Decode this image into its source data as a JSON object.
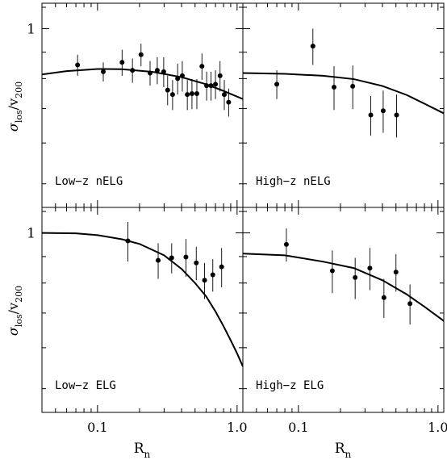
{
  "colors": {
    "ink": "#000000",
    "background": "#ffffff"
  },
  "xaxis": {
    "scale": "log",
    "range": [
      0.04,
      1.1
    ],
    "ticks": [
      {
        "value": 0.1,
        "label": "0.1"
      },
      {
        "value": 1.0,
        "label": "1.0"
      }
    ],
    "label": "R",
    "label_sub": "n"
  },
  "yaxis": {
    "scale": "log",
    "range": [
      0.45,
      1.12
    ],
    "ticks": [
      {
        "value": 1,
        "label": "1"
      }
    ],
    "label": "σ",
    "label_sub1": "los",
    "label_mid": "/v",
    "label_sub2": "200"
  },
  "chart_data": [
    {
      "type": "scatter",
      "panel": "top-left",
      "title": "Low−z nELG",
      "points": [
        {
          "x": 0.072,
          "y": 0.85,
          "err": 0.04
        },
        {
          "x": 0.11,
          "y": 0.825,
          "err": 0.035
        },
        {
          "x": 0.15,
          "y": 0.86,
          "err": 0.05
        },
        {
          "x": 0.178,
          "y": 0.83,
          "err": 0.045
        },
        {
          "x": 0.205,
          "y": 0.89,
          "err": 0.045
        },
        {
          "x": 0.238,
          "y": 0.82,
          "err": 0.045
        },
        {
          "x": 0.268,
          "y": 0.83,
          "err": 0.05
        },
        {
          "x": 0.298,
          "y": 0.825,
          "err": 0.055
        },
        {
          "x": 0.318,
          "y": 0.76,
          "err": 0.05
        },
        {
          "x": 0.345,
          "y": 0.745,
          "err": 0.05
        },
        {
          "x": 0.375,
          "y": 0.8,
          "err": 0.055
        },
        {
          "x": 0.405,
          "y": 0.81,
          "err": 0.055
        },
        {
          "x": 0.44,
          "y": 0.745,
          "err": 0.05
        },
        {
          "x": 0.475,
          "y": 0.748,
          "err": 0.05
        },
        {
          "x": 0.515,
          "y": 0.748,
          "err": 0.05
        },
        {
          "x": 0.56,
          "y": 0.845,
          "err": 0.05
        },
        {
          "x": 0.605,
          "y": 0.775,
          "err": 0.05
        },
        {
          "x": 0.65,
          "y": 0.775,
          "err": 0.05
        },
        {
          "x": 0.7,
          "y": 0.78,
          "err": 0.05
        },
        {
          "x": 0.755,
          "y": 0.81,
          "err": 0.055
        },
        {
          "x": 0.81,
          "y": 0.745,
          "err": 0.05
        },
        {
          "x": 0.87,
          "y": 0.72,
          "err": 0.045
        }
      ],
      "model": [
        [
          0.04,
          0.815
        ],
        [
          0.06,
          0.827
        ],
        [
          0.1,
          0.835
        ],
        [
          0.15,
          0.834
        ],
        [
          0.25,
          0.824
        ],
        [
          0.4,
          0.805
        ],
        [
          0.6,
          0.78
        ],
        [
          0.8,
          0.757
        ],
        [
          1.1,
          0.73
        ]
      ]
    },
    {
      "type": "scatter",
      "panel": "top-right",
      "title": "High−z nELG",
      "points": [
        {
          "x": 0.07,
          "y": 0.78,
          "err": 0.05
        },
        {
          "x": 0.127,
          "y": 0.925,
          "err": 0.075
        },
        {
          "x": 0.18,
          "y": 0.77,
          "err": 0.075
        },
        {
          "x": 0.245,
          "y": 0.773,
          "err": 0.075
        },
        {
          "x": 0.33,
          "y": 0.68,
          "err": 0.06
        },
        {
          "x": 0.405,
          "y": 0.693,
          "err": 0.065
        },
        {
          "x": 0.505,
          "y": 0.68,
          "err": 0.065
        }
      ],
      "model": [
        [
          0.04,
          0.82
        ],
        [
          0.08,
          0.817
        ],
        [
          0.15,
          0.81
        ],
        [
          0.25,
          0.798
        ],
        [
          0.4,
          0.774
        ],
        [
          0.6,
          0.743
        ],
        [
          0.8,
          0.715
        ],
        [
          1.1,
          0.685
        ]
      ]
    },
    {
      "type": "scatter",
      "panel": "bottom-left",
      "title": "Low−z ELG",
      "points": [
        {
          "x": 0.165,
          "y": 0.965,
          "err": 0.085
        },
        {
          "x": 0.272,
          "y": 0.885,
          "err": 0.07
        },
        {
          "x": 0.34,
          "y": 0.895,
          "err": 0.06
        },
        {
          "x": 0.43,
          "y": 0.898,
          "err": 0.075
        },
        {
          "x": 0.51,
          "y": 0.875,
          "err": 0.065
        },
        {
          "x": 0.585,
          "y": 0.81,
          "err": 0.065
        },
        {
          "x": 0.67,
          "y": 0.83,
          "err": 0.06
        },
        {
          "x": 0.775,
          "y": 0.86,
          "err": 0.075
        }
      ],
      "model": [
        [
          0.04,
          1.0
        ],
        [
          0.07,
          0.998
        ],
        [
          0.1,
          0.99
        ],
        [
          0.15,
          0.972
        ],
        [
          0.2,
          0.952
        ],
        [
          0.3,
          0.905
        ],
        [
          0.4,
          0.852
        ],
        [
          0.5,
          0.8
        ],
        [
          0.6,
          0.754
        ],
        [
          0.7,
          0.705
        ],
        [
          0.8,
          0.66
        ],
        [
          0.9,
          0.62
        ],
        [
          1.0,
          0.585
        ],
        [
          1.1,
          0.552
        ]
      ]
    },
    {
      "type": "scatter",
      "panel": "bottom-right",
      "title": "High−z ELG",
      "points": [
        {
          "x": 0.082,
          "y": 0.95,
          "err": 0.07
        },
        {
          "x": 0.175,
          "y": 0.845,
          "err": 0.08
        },
        {
          "x": 0.255,
          "y": 0.82,
          "err": 0.075
        },
        {
          "x": 0.325,
          "y": 0.855,
          "err": 0.08
        },
        {
          "x": 0.41,
          "y": 0.75,
          "err": 0.065
        },
        {
          "x": 0.5,
          "y": 0.84,
          "err": 0.07
        },
        {
          "x": 0.63,
          "y": 0.73,
          "err": 0.065
        }
      ],
      "model": [
        [
          0.04,
          0.912
        ],
        [
          0.08,
          0.905
        ],
        [
          0.15,
          0.88
        ],
        [
          0.25,
          0.855
        ],
        [
          0.4,
          0.81
        ],
        [
          0.6,
          0.76
        ],
        [
          0.8,
          0.72
        ],
        [
          1.1,
          0.676
        ]
      ]
    }
  ]
}
